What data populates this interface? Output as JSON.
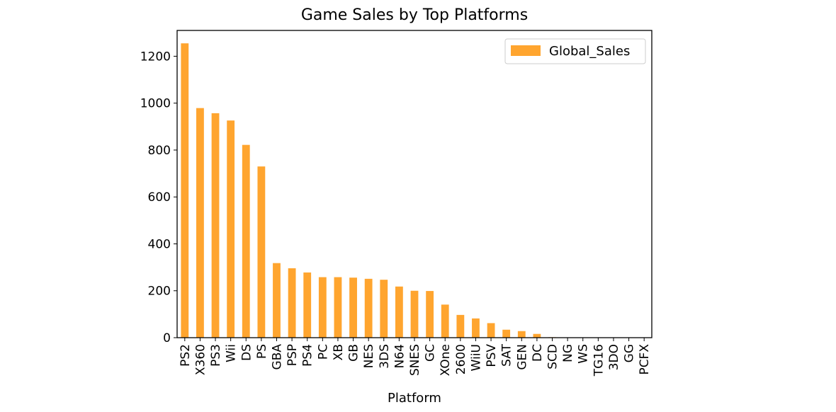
{
  "chart_data": {
    "type": "bar",
    "title": "Game Sales by Top Platforms",
    "xlabel": "Platform",
    "ylabel": "",
    "ylim": [
      0,
      1310
    ],
    "yticks": [
      0,
      200,
      400,
      600,
      800,
      1000,
      1200
    ],
    "grid": false,
    "legend_position": "top-right",
    "bar_color": "#ffa52f",
    "categories": [
      "PS2",
      "X360",
      "PS3",
      "Wii",
      "DS",
      "PS",
      "GBA",
      "PSP",
      "PS4",
      "PC",
      "XB",
      "GB",
      "NES",
      "3DS",
      "N64",
      "SNES",
      "GC",
      "XOne",
      "2600",
      "WiiU",
      "PSV",
      "SAT",
      "GEN",
      "DC",
      "SCD",
      "NG",
      "WS",
      "TG16",
      "3DO",
      "GG",
      "PCFX"
    ],
    "series": [
      {
        "name": "Global_Sales",
        "values": [
          1255,
          979,
          957,
          926,
          822,
          730,
          318,
          296,
          278,
          258,
          258,
          256,
          251,
          247,
          218,
          200,
          199,
          141,
          97,
          82,
          62,
          34,
          28,
          16,
          2,
          1,
          1,
          0,
          0,
          0,
          0
        ]
      }
    ]
  }
}
